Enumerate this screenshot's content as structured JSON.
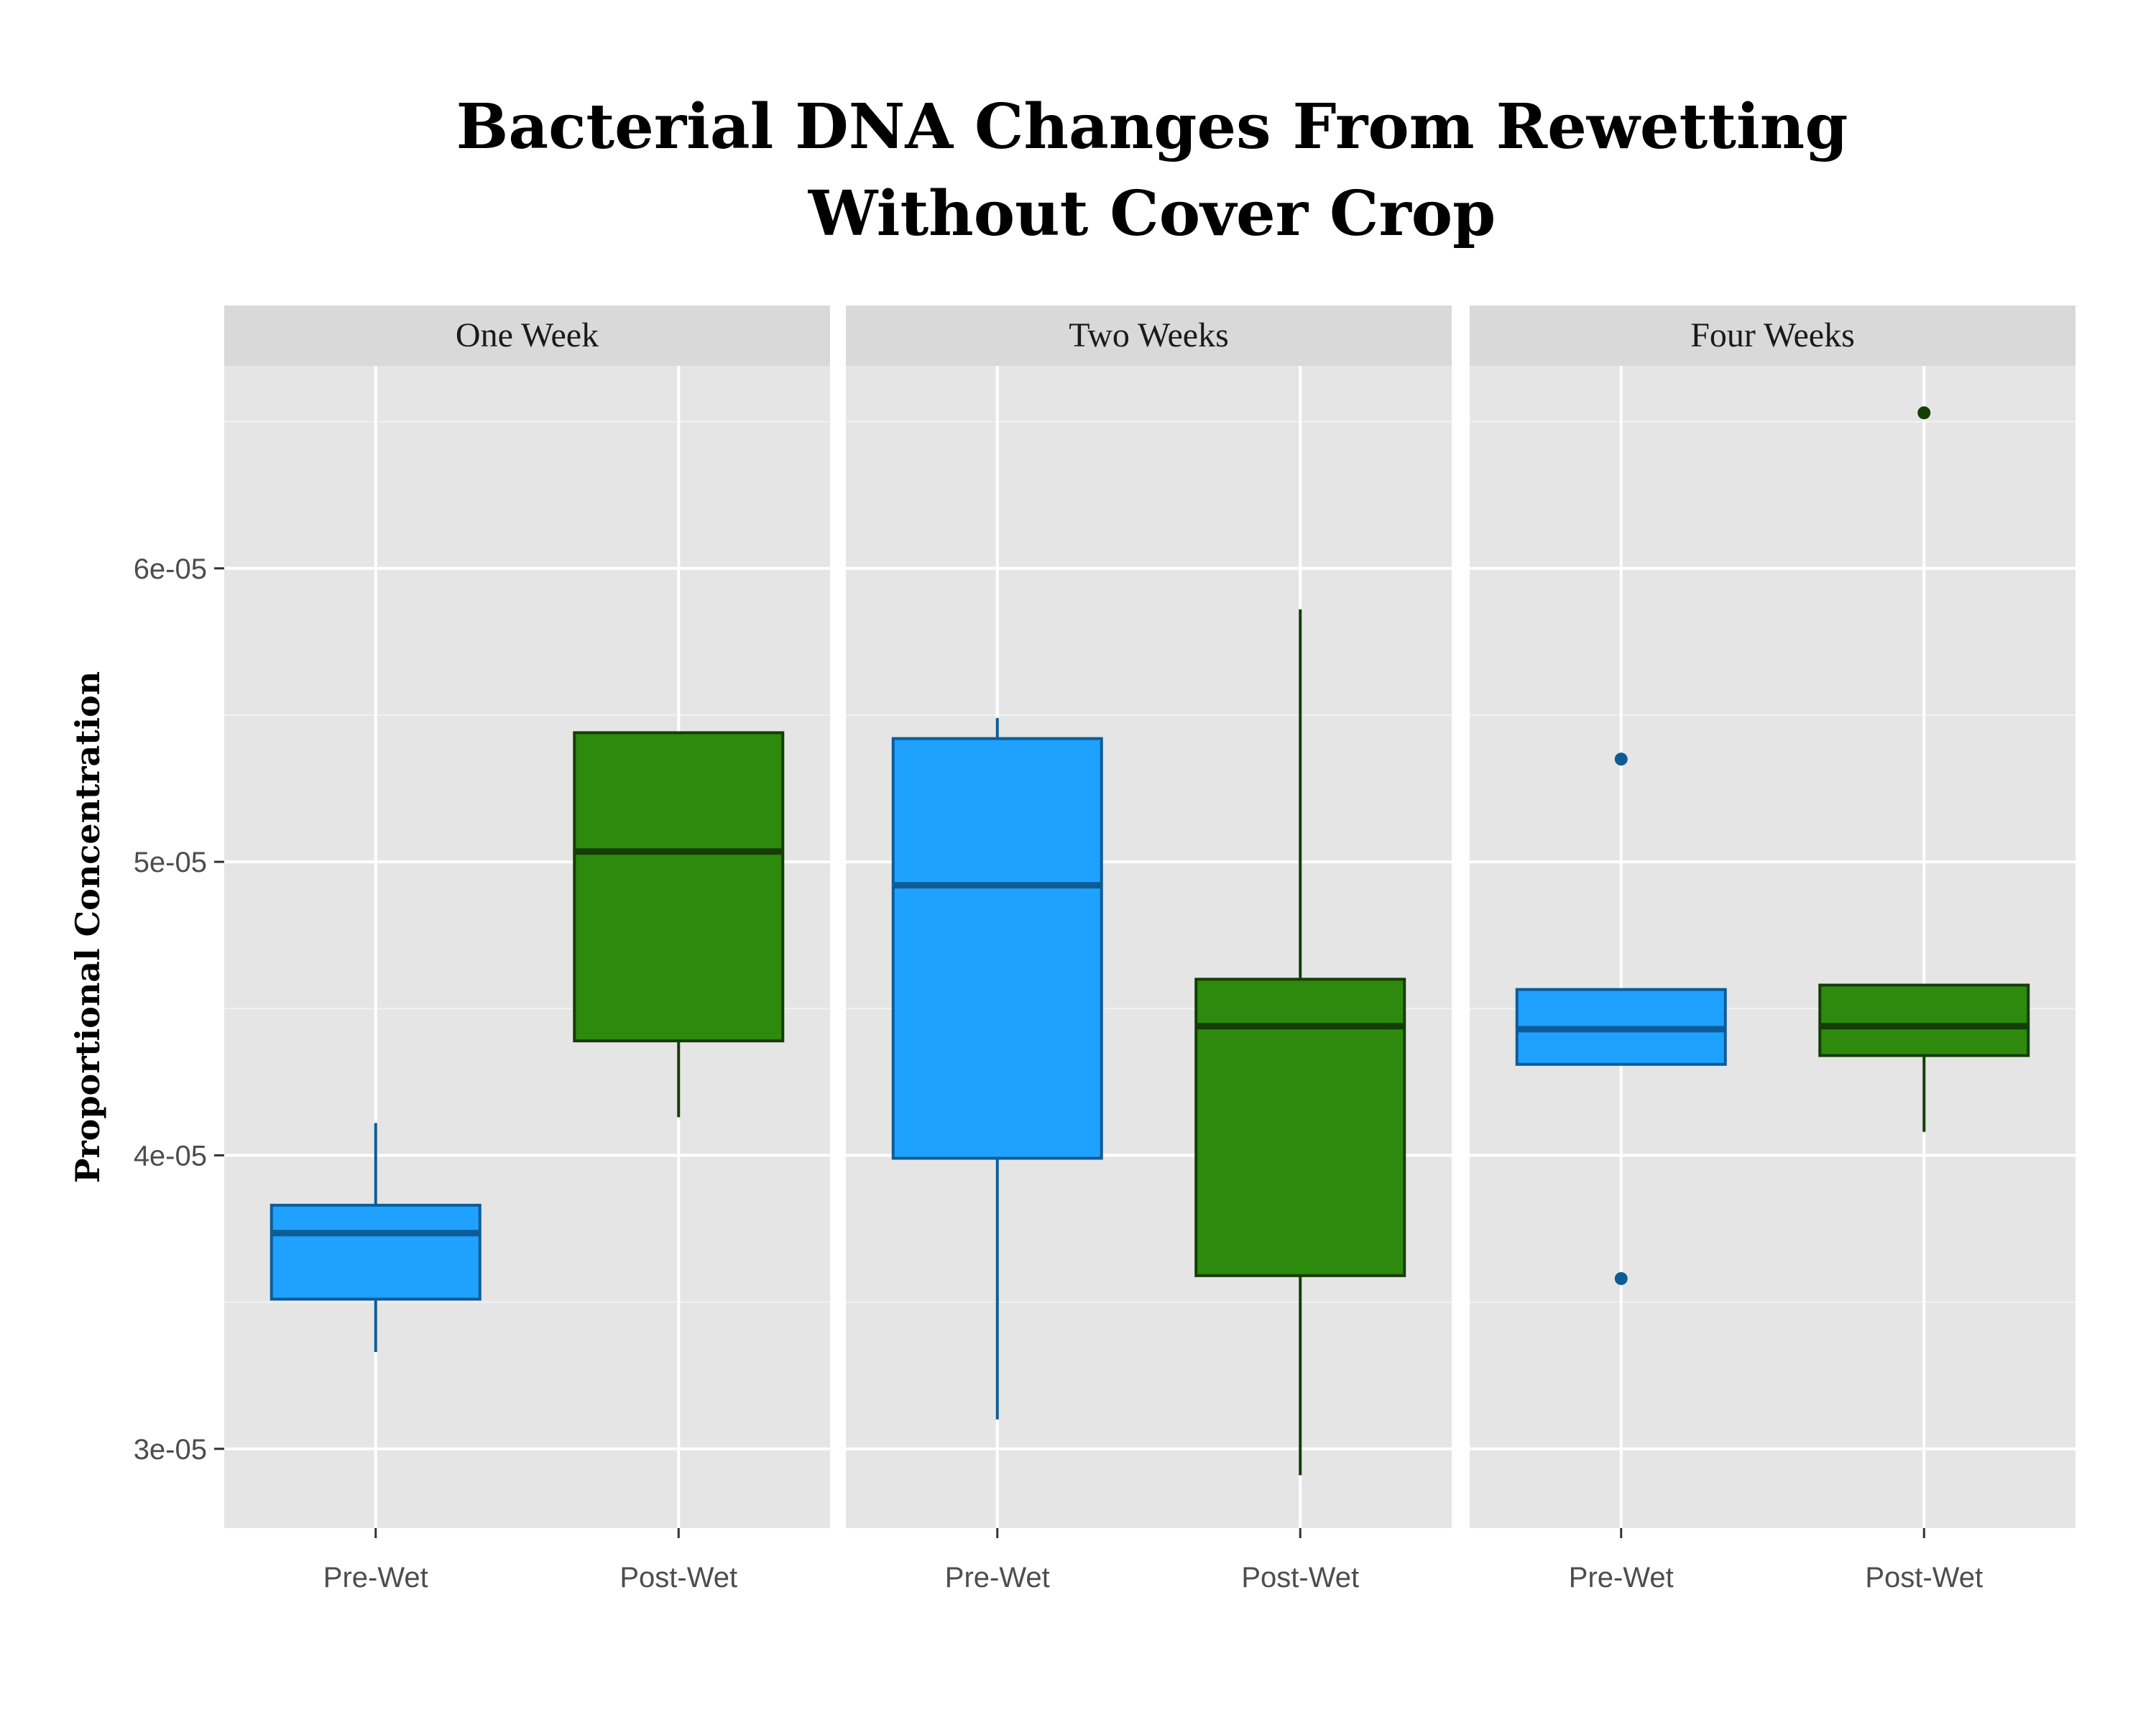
{
  "chart_data": {
    "type": "boxplot",
    "title_lines": [
      "Bacterial DNA Changes From Rewetting",
      "Without Cover Crop"
    ],
    "ylabel": "Proportional Concentration",
    "xlabel": "",
    "ylim": [
      2.73e-05,
      6.69e-05
    ],
    "y_ticks": [
      {
        "value": 3e-05,
        "label": "3e-05"
      },
      {
        "value": 4e-05,
        "label": "4e-05"
      },
      {
        "value": 5e-05,
        "label": "5e-05"
      },
      {
        "value": 6e-05,
        "label": "6e-05"
      }
    ],
    "categories": [
      "Pre-Wet",
      "Post-Wet"
    ],
    "grid": true,
    "legend": "none",
    "colors": {
      "Pre-Wet": {
        "fill": "#1ea1ff",
        "line": "#0e5c96"
      },
      "Post-Wet": {
        "fill": "#2d8a0c",
        "line": "#153d06"
      }
    },
    "panels": [
      {
        "label": "One Week",
        "boxes": [
          {
            "category": "Pre-Wet",
            "whisker_low": 3.33e-05,
            "q1": 3.51e-05,
            "median": 3.735e-05,
            "q3": 3.83e-05,
            "whisker_high": 4.11e-05,
            "outliers": []
          },
          {
            "category": "Post-Wet",
            "whisker_low": 4.13e-05,
            "q1": 4.39e-05,
            "median": 5.035e-05,
            "q3": 5.44e-05,
            "whisker_high": 5.44e-05,
            "outliers": []
          }
        ]
      },
      {
        "label": "Two Weeks",
        "boxes": [
          {
            "category": "Pre-Wet",
            "whisker_low": 3.1e-05,
            "q1": 3.99e-05,
            "median": 4.92e-05,
            "q3": 5.42e-05,
            "whisker_high": 5.49e-05,
            "outliers": []
          },
          {
            "category": "Post-Wet",
            "whisker_low": 2.91e-05,
            "q1": 3.59e-05,
            "median": 4.44e-05,
            "q3": 4.6e-05,
            "whisker_high": 5.86e-05,
            "outliers": []
          }
        ]
      },
      {
        "label": "Four Weeks",
        "boxes": [
          {
            "category": "Pre-Wet",
            "whisker_low": 4.31e-05,
            "q1": 4.31e-05,
            "median": 4.43e-05,
            "q3": 4.565e-05,
            "whisker_high": 4.565e-05,
            "outliers": [
              5.35e-05,
              3.58e-05
            ]
          },
          {
            "category": "Post-Wet",
            "whisker_low": 4.08e-05,
            "q1": 4.34e-05,
            "median": 4.44e-05,
            "q3": 4.58e-05,
            "whisker_high": 4.58e-05,
            "outliers": [
              6.53e-05
            ]
          }
        ]
      }
    ]
  }
}
